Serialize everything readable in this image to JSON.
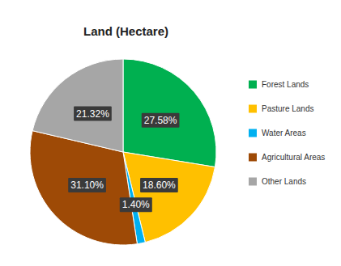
{
  "chart_data": {
    "type": "pie",
    "title": "Land (Hectare)",
    "categories": [
      "Forest Lands",
      "Pasture Lands",
      "Water Areas",
      "Agricultural Areas",
      "Other Lands"
    ],
    "values": [
      27.58,
      18.6,
      1.4,
      31.1,
      21.32
    ],
    "value_labels": [
      "27.58%",
      "18.60%",
      "1.40%",
      "31.10%",
      "21.32%"
    ],
    "colors": [
      "#00b050",
      "#ffc000",
      "#00b0f0",
      "#9e4a06",
      "#a6a6a6"
    ],
    "data_labels": true,
    "legend": "right"
  }
}
